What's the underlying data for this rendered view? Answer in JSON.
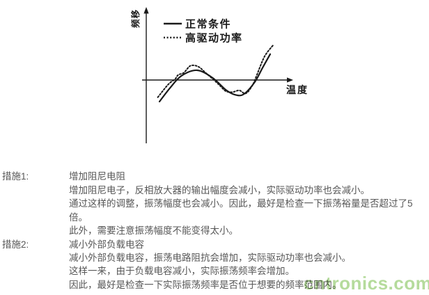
{
  "colors": {
    "ink": "#1a1a1a",
    "body_text": "#575757",
    "watermark": "#a8d58b"
  },
  "chart": {
    "ylabel": "频移",
    "xlabel": "温度",
    "legend": [
      {
        "label": "正常条件",
        "style": "solid"
      },
      {
        "label": "高驱动功率",
        "style": "dotted"
      }
    ]
  },
  "chart_data": {
    "type": "line",
    "title": "",
    "xlabel": "温度",
    "ylabel": "频移",
    "x_ticks": [],
    "y_ticks": [],
    "legend_position": "top-left inside plot",
    "axes_note": "qualitative sketch; no numeric ticks; arrows on both axes; x-axis drawn at y=0 (frequency shift zero line); classic AT-cut cubic frequency-temperature curve",
    "series": [
      {
        "name": "正常条件",
        "style": "solid",
        "points": [
          [
            0,
            -0.5
          ],
          [
            0.1,
            -0.17
          ],
          [
            0.2,
            0.1
          ],
          [
            0.34,
            0.225
          ],
          [
            0.48,
            0.05
          ],
          [
            0.6,
            -0.23
          ],
          [
            0.68,
            -0.34
          ],
          [
            0.76,
            -0.33
          ],
          [
            0.86,
            -0.05
          ],
          [
            0.93,
            0.28
          ],
          [
            1,
            0.6
          ]
        ]
      },
      {
        "name": "高驱动功率",
        "style": "dotted",
        "points": [
          [
            -0.015,
            -0.4
          ],
          [
            0.08,
            -0.1
          ],
          [
            0.14,
            0.02
          ],
          [
            0.17,
            0.12
          ],
          [
            0.22,
            0.17
          ],
          [
            0.28,
            0.33
          ],
          [
            0.35,
            0.31
          ],
          [
            0.42,
            0.16
          ],
          [
            0.5,
            -0.02
          ],
          [
            0.55,
            -0.14
          ],
          [
            0.6,
            -0.26
          ],
          [
            0.66,
            -0.28
          ],
          [
            0.72,
            -0.24
          ],
          [
            0.78,
            -0.31
          ],
          [
            0.84,
            -0.12
          ],
          [
            0.88,
            0.12
          ],
          [
            0.95,
            0.55
          ],
          [
            1.03,
            0.82
          ]
        ]
      }
    ]
  },
  "measures": [
    {
      "label": "措施1:",
      "title": "增加阻尼电阻",
      "lines": [
        "增加阻尼电子，反相放大器的输出幅度会减小，实际驱动功率也会减小。",
        "通过这样的调整，振荡幅度也会减小。因此，最好是检查一下振荡裕量是否超过了5",
        "倍。",
        "此外，需要注意振荡幅度不能变得太小。"
      ]
    },
    {
      "label": "措施2:",
      "title": "减小外部负载电容",
      "lines": [
        "减小外部负载电容，振荡电路阻抗会增加，实际驱动功率也会减小。",
        "这样一来，由于负载电容减小，实际振荡频率会增加。",
        "因此，最好是检查一下实际振荡频率是否位于想要的频率范围内。"
      ]
    }
  ],
  "watermark": {
    "text": "cntronics.com"
  }
}
